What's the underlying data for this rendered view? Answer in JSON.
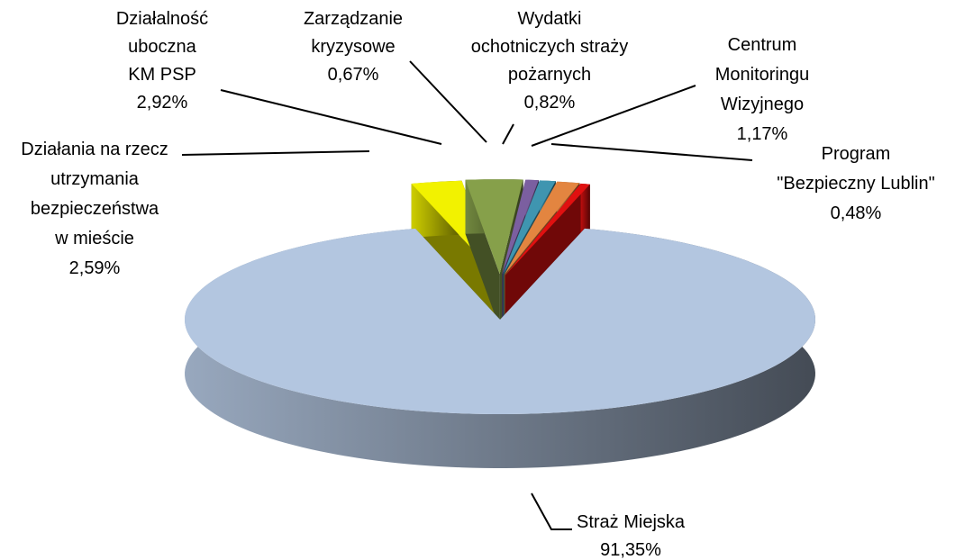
{
  "chart_data": {
    "type": "pie",
    "categories": [
      "Straż Miejska",
      "Działania na rzecz\nutrzymania\nbezpieczeństwa\nw mieście",
      "Działalność\nuboczna\nKM PSP",
      "Zarządzanie\nkryzysowe",
      "Wydatki\nochotniczych straży\npożarnych",
      "Centrum\nMonitoringu\nWizyjnego",
      "Program\n\"Bezpieczny Lublin\""
    ],
    "values": [
      91.35,
      2.59,
      2.92,
      0.67,
      0.82,
      1.17,
      0.48
    ],
    "value_labels": [
      "91,35%",
      "2,59%",
      "2,92%",
      "0,67%",
      "0,82%",
      "1,17%",
      "0,48%"
    ],
    "colors": [
      "#b3c6e0",
      "#f2f200",
      "#86a04a",
      "#7b5fa0",
      "#3f95b0",
      "#e38540",
      "#e01010"
    ]
  }
}
